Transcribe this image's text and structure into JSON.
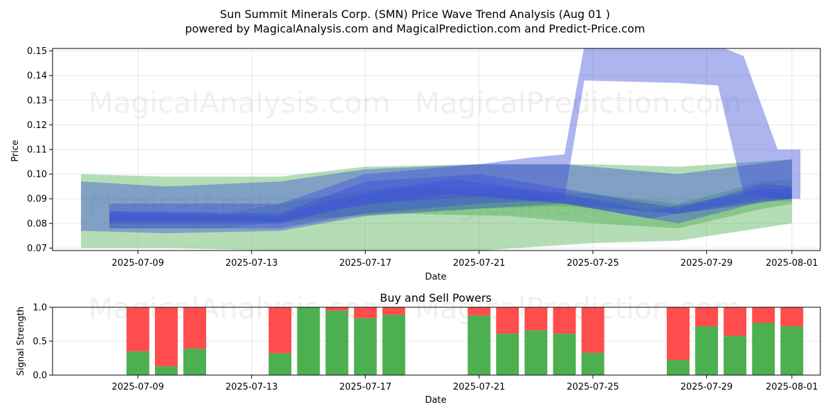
{
  "title_line1": "Sun Summit Minerals Corp. (SMN) Price Wave Trend Analysis (Aug 01 )",
  "title_line2": "powered by MagicalAnalysis.com and MagicalPrediction.com and Predict-Price.com",
  "watermarks": [
    "MagicalAnalysis.com",
    "MagicalPrediction.com"
  ],
  "colors": {
    "green_band": "#4caf50",
    "blue_band": "#3b4fd8",
    "buy_bar": "#4caf50",
    "sell_bar": "#ff4c4c",
    "grid": "#e6e6e6"
  },
  "chart_data": [
    {
      "type": "area",
      "title": "",
      "xlabel": "Date",
      "ylabel": "Price",
      "xlim": [
        "2025-07-06",
        "2025-08-02"
      ],
      "ylim": [
        0.069,
        0.151
      ],
      "x_ticks": [
        "2025-07-09",
        "2025-07-13",
        "2025-07-17",
        "2025-07-21",
        "2025-07-25",
        "2025-07-29",
        "2025-08-01"
      ],
      "y_ticks": [
        0.07,
        0.08,
        0.09,
        0.1,
        0.11,
        0.12,
        0.13,
        0.14,
        0.15
      ],
      "grid": true,
      "bands": [
        {
          "color": "green",
          "x": [
            "2025-07-07",
            "2025-07-10",
            "2025-07-14",
            "2025-07-17",
            "2025-07-21",
            "2025-07-25",
            "2025-07-28",
            "2025-08-01"
          ],
          "upper": [
            0.1,
            0.099,
            0.099,
            0.103,
            0.104,
            0.104,
            0.103,
            0.106
          ],
          "lower": [
            0.07,
            0.07,
            0.069,
            0.068,
            0.069,
            0.072,
            0.073,
            0.08
          ]
        },
        {
          "color": "green",
          "x": [
            "2025-07-08",
            "2025-07-12",
            "2025-07-15",
            "2025-07-18",
            "2025-07-22",
            "2025-07-25",
            "2025-07-28",
            "2025-07-31",
            "2025-08-01"
          ],
          "upper": [
            0.085,
            0.084,
            0.09,
            0.095,
            0.094,
            0.092,
            0.088,
            0.097,
            0.098
          ],
          "lower": [
            0.078,
            0.078,
            0.082,
            0.084,
            0.083,
            0.08,
            0.078,
            0.086,
            0.088
          ]
        },
        {
          "color": "green",
          "x": [
            "2025-07-08",
            "2025-07-14",
            "2025-07-17",
            "2025-07-21",
            "2025-07-24",
            "2025-07-28",
            "2025-07-31",
            "2025-08-01"
          ],
          "upper": [
            0.082,
            0.082,
            0.088,
            0.092,
            0.091,
            0.087,
            0.093,
            0.092
          ],
          "lower": [
            0.08,
            0.08,
            0.084,
            0.086,
            0.087,
            0.084,
            0.089,
            0.089
          ]
        },
        {
          "color": "blue",
          "x": [
            "2025-07-07",
            "2025-07-10",
            "2025-07-14",
            "2025-07-17",
            "2025-07-21",
            "2025-07-24",
            "2025-07-28",
            "2025-08-01"
          ],
          "upper": [
            0.097,
            0.095,
            0.097,
            0.102,
            0.104,
            0.104,
            0.1,
            0.106
          ],
          "lower": [
            0.077,
            0.076,
            0.077,
            0.083,
            0.086,
            0.088,
            0.084,
            0.09
          ]
        },
        {
          "color": "blue",
          "x": [
            "2025-07-08",
            "2025-07-14",
            "2025-07-17",
            "2025-07-21",
            "2025-07-23",
            "2025-07-24",
            "2025-07-24.7",
            "2025-07-28",
            "2025-07-29.4",
            "2025-07-30.3",
            "2025-07-31.5",
            "2025-08-01.3"
          ],
          "upper": [
            0.088,
            0.088,
            0.1,
            0.104,
            0.107,
            0.108,
            0.152,
            0.152,
            0.152,
            0.148,
            0.11,
            0.11
          ],
          "lower": [
            0.078,
            0.078,
            0.084,
            0.088,
            0.089,
            0.09,
            0.138,
            0.137,
            0.136,
            0.092,
            0.09,
            0.09
          ]
        },
        {
          "color": "blue",
          "x": [
            "2025-07-08",
            "2025-07-14",
            "2025-07-17",
            "2025-07-21",
            "2025-07-24",
            "2025-07-28",
            "2025-07-31",
            "2025-08-01"
          ],
          "upper": [
            0.085,
            0.084,
            0.097,
            0.1,
            0.094,
            0.086,
            0.096,
            0.095
          ],
          "lower": [
            0.08,
            0.08,
            0.088,
            0.091,
            0.088,
            0.08,
            0.089,
            0.09
          ]
        },
        {
          "color": "blue",
          "x": [
            "2025-07-08",
            "2025-07-14",
            "2025-07-16",
            "2025-07-20",
            "2025-07-24",
            "2025-07-27",
            "2025-07-31",
            "2025-08-01"
          ],
          "upper": [
            0.084,
            0.083,
            0.09,
            0.098,
            0.092,
            0.085,
            0.094,
            0.094
          ],
          "lower": [
            0.081,
            0.081,
            0.086,
            0.092,
            0.088,
            0.082,
            0.09,
            0.09
          ]
        }
      ]
    },
    {
      "type": "bar",
      "title": "Buy and Sell Powers",
      "xlabel": "Date",
      "ylabel": "Signal Strength",
      "xlim": [
        "2025-07-06",
        "2025-08-02"
      ],
      "ylim": [
        0,
        1.0
      ],
      "x_ticks": [
        "2025-07-09",
        "2025-07-13",
        "2025-07-17",
        "2025-07-21",
        "2025-07-25",
        "2025-07-29",
        "2025-08-01"
      ],
      "y_ticks": [
        0.0,
        0.5,
        1.0
      ],
      "y_tick_labels": [
        "0.0",
        "0.5",
        "1.0"
      ],
      "grid": true,
      "dates": [
        "2025-07-09",
        "2025-07-10",
        "2025-07-11",
        "2025-07-14",
        "2025-07-15",
        "2025-07-16",
        "2025-07-17",
        "2025-07-18",
        "2025-07-21",
        "2025-07-22",
        "2025-07-23",
        "2025-07-24",
        "2025-07-25",
        "2025-07-28",
        "2025-07-29",
        "2025-07-30",
        "2025-07-31",
        "2025-08-01"
      ],
      "series": [
        {
          "name": "Buy",
          "values": [
            0.35,
            0.13,
            0.39,
            0.32,
            1.0,
            0.95,
            0.84,
            0.89,
            0.88,
            0.61,
            0.66,
            0.61,
            0.33,
            0.22,
            0.72,
            0.58,
            0.77,
            0.72
          ]
        },
        {
          "name": "Sell",
          "values": [
            0.65,
            0.87,
            0.61,
            0.68,
            0.0,
            0.05,
            0.16,
            0.11,
            0.12,
            0.39,
            0.34,
            0.39,
            0.67,
            0.78,
            0.28,
            0.42,
            0.23,
            0.28
          ]
        }
      ]
    }
  ]
}
